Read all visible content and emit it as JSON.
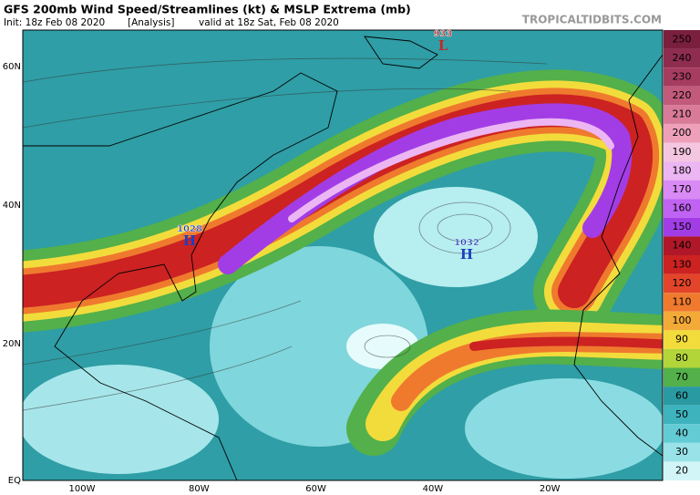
{
  "header": {
    "title": "GFS 200mb Wind Speed/Streamlines (kt) & MSLP Extrema (mb)",
    "init": "Init: 18z Feb 08 2020",
    "run": "[Analysis]",
    "valid": "valid at 18z Sat, Feb 08 2020",
    "watermark": "TROPICALTIDBITS.COM"
  },
  "colorbar": {
    "labels": [
      250,
      240,
      230,
      220,
      210,
      200,
      190,
      180,
      170,
      160,
      150,
      140,
      130,
      120,
      110,
      100,
      90,
      80,
      70,
      60,
      50,
      40,
      30,
      20
    ],
    "colors": [
      "#7a1f3d",
      "#8e2d4f",
      "#a63c60",
      "#c25a7c",
      "#d97a98",
      "#eea0bb",
      "#f5c6e0",
      "#ecb6f2",
      "#d98af5",
      "#c062f2",
      "#a23de6",
      "#b0182a",
      "#cc2222",
      "#e2452a",
      "#ef7a2e",
      "#f4aa38",
      "#f2dc3c",
      "#b2d53a",
      "#53b04a",
      "#2a9aa2",
      "#3db3bd",
      "#63cbd4",
      "#98e2e8",
      "#d2f6f8"
    ]
  },
  "latitudes": [
    "60N",
    "40N",
    "20N",
    "EQ"
  ],
  "longitudes": [
    "100W",
    "80W",
    "60W",
    "40W",
    "20W"
  ],
  "pressure_centers": [
    {
      "value": "933",
      "symbol": "L"
    },
    {
      "value": "1028",
      "symbol": "H"
    },
    {
      "value": "1032",
      "symbol": "H"
    }
  ]
}
